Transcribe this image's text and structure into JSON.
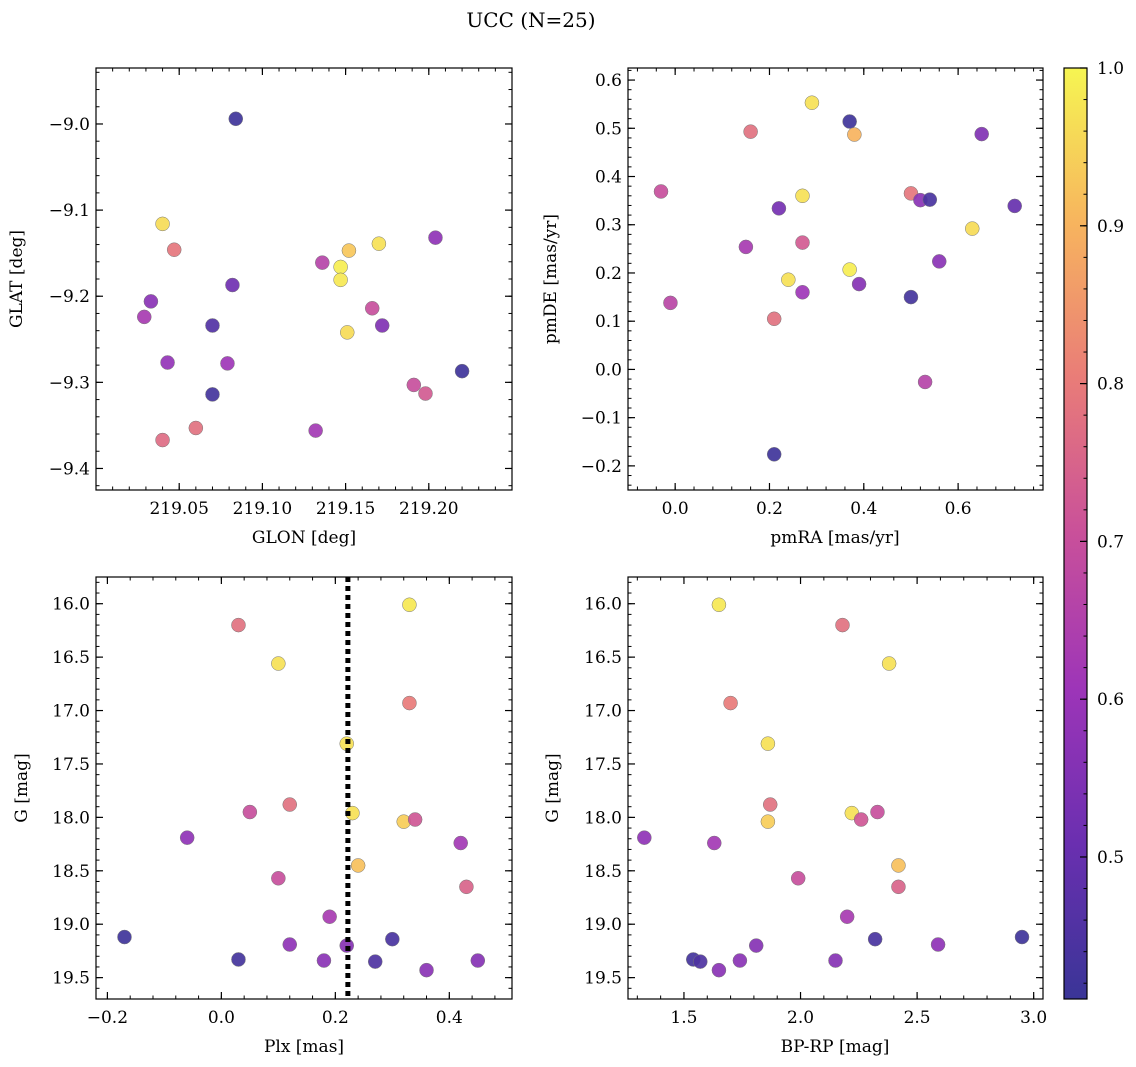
{
  "title": "UCC (N=25)",
  "colorbar": {
    "min": 0.41,
    "max": 1.0,
    "ticks": [
      0.5,
      0.6,
      0.7,
      0.8,
      0.9,
      1.0
    ],
    "tick_labels": [
      "0.5",
      "0.6",
      "0.7",
      "0.8",
      "0.9",
      "1.0"
    ],
    "colormap": "plasma",
    "stops": [
      "#3a3597",
      "#6a2fb0",
      "#9d35b8",
      "#c9509a",
      "#e97c78",
      "#f7b45e",
      "#f6f552"
    ]
  },
  "chart_data": [
    {
      "type": "scatter",
      "name": "glon-glat",
      "xlabel": "GLON [deg]",
      "ylabel": "GLAT [deg]",
      "xlim": [
        219.0,
        219.25
      ],
      "ylim": [
        -9.425,
        -8.935
      ],
      "xticks": [
        219.05,
        219.1,
        219.15,
        219.2
      ],
      "xtick_labels": [
        "219.05",
        "219.10",
        "219.15",
        "219.20"
      ],
      "yticks": [
        -9.0,
        -9.1,
        -9.2,
        -9.3,
        -9.4
      ],
      "ytick_labels": [
        "−9.0",
        "−9.1",
        "−9.2",
        "−9.3",
        "−9.4"
      ],
      "points": [
        {
          "x": 219.084,
          "y": -8.994,
          "c": 0.42
        },
        {
          "x": 219.04,
          "y": -9.116,
          "c": 0.96
        },
        {
          "x": 219.047,
          "y": -9.146,
          "c": 0.79
        },
        {
          "x": 219.033,
          "y": -9.206,
          "c": 0.57
        },
        {
          "x": 219.029,
          "y": -9.224,
          "c": 0.63
        },
        {
          "x": 219.043,
          "y": -9.277,
          "c": 0.59
        },
        {
          "x": 219.07,
          "y": -9.234,
          "c": 0.46
        },
        {
          "x": 219.082,
          "y": -9.187,
          "c": 0.52
        },
        {
          "x": 219.079,
          "y": -9.278,
          "c": 0.61
        },
        {
          "x": 219.07,
          "y": -9.314,
          "c": 0.43
        },
        {
          "x": 219.04,
          "y": -9.367,
          "c": 0.77
        },
        {
          "x": 219.06,
          "y": -9.353,
          "c": 0.78
        },
        {
          "x": 219.136,
          "y": -9.161,
          "c": 0.66
        },
        {
          "x": 219.147,
          "y": -9.166,
          "c": 0.99
        },
        {
          "x": 219.147,
          "y": -9.181,
          "c": 0.98
        },
        {
          "x": 219.152,
          "y": -9.147,
          "c": 0.93
        },
        {
          "x": 219.17,
          "y": -9.139,
          "c": 0.97
        },
        {
          "x": 219.151,
          "y": -9.242,
          "c": 0.96
        },
        {
          "x": 219.166,
          "y": -9.214,
          "c": 0.7
        },
        {
          "x": 219.172,
          "y": -9.234,
          "c": 0.55
        },
        {
          "x": 219.204,
          "y": -9.132,
          "c": 0.58
        },
        {
          "x": 219.132,
          "y": -9.356,
          "c": 0.62
        },
        {
          "x": 219.191,
          "y": -9.303,
          "c": 0.7
        },
        {
          "x": 219.198,
          "y": -9.313,
          "c": 0.73
        },
        {
          "x": 219.22,
          "y": -9.287,
          "c": 0.42
        }
      ]
    },
    {
      "type": "scatter",
      "name": "pmra-pmde",
      "xlabel": "pmRA [mas/yr]",
      "ylabel": "pmDE [mas/yr]",
      "xlim": [
        -0.1,
        0.78
      ],
      "ylim": [
        -0.25,
        0.625
      ],
      "xticks": [
        0.0,
        0.2,
        0.4,
        0.6
      ],
      "xtick_labels": [
        "0.0",
        "0.2",
        "0.4",
        "0.6"
      ],
      "yticks": [
        -0.2,
        -0.1,
        0.0,
        0.1,
        0.2,
        0.3,
        0.4,
        0.5,
        0.6
      ],
      "ytick_labels": [
        "−0.2",
        "−0.1",
        "0.0",
        "0.1",
        "0.2",
        "0.3",
        "0.4",
        "0.5",
        "0.6"
      ],
      "points": [
        {
          "x": 0.29,
          "y": 0.553,
          "c": 0.97
        },
        {
          "x": 0.37,
          "y": 0.514,
          "c": 0.42
        },
        {
          "x": 0.16,
          "y": 0.493,
          "c": 0.78
        },
        {
          "x": 0.38,
          "y": 0.487,
          "c": 0.9
        },
        {
          "x": 0.65,
          "y": 0.488,
          "c": 0.55
        },
        {
          "x": -0.03,
          "y": 0.369,
          "c": 0.7
        },
        {
          "x": 0.27,
          "y": 0.36,
          "c": 0.97
        },
        {
          "x": 0.5,
          "y": 0.365,
          "c": 0.79
        },
        {
          "x": 0.52,
          "y": 0.351,
          "c": 0.57
        },
        {
          "x": 0.54,
          "y": 0.352,
          "c": 0.44
        },
        {
          "x": 0.72,
          "y": 0.339,
          "c": 0.5
        },
        {
          "x": 0.22,
          "y": 0.334,
          "c": 0.53
        },
        {
          "x": 0.63,
          "y": 0.292,
          "c": 0.96
        },
        {
          "x": 0.15,
          "y": 0.254,
          "c": 0.63
        },
        {
          "x": 0.27,
          "y": 0.263,
          "c": 0.73
        },
        {
          "x": 0.56,
          "y": 0.224,
          "c": 0.57
        },
        {
          "x": 0.37,
          "y": 0.207,
          "c": 0.99
        },
        {
          "x": 0.24,
          "y": 0.186,
          "c": 0.97
        },
        {
          "x": 0.27,
          "y": 0.16,
          "c": 0.61
        },
        {
          "x": 0.39,
          "y": 0.177,
          "c": 0.56
        },
        {
          "x": 0.5,
          "y": 0.15,
          "c": 0.43
        },
        {
          "x": -0.01,
          "y": 0.138,
          "c": 0.67
        },
        {
          "x": 0.21,
          "y": 0.105,
          "c": 0.78
        },
        {
          "x": 0.53,
          "y": -0.026,
          "c": 0.66
        },
        {
          "x": 0.21,
          "y": -0.176,
          "c": 0.42
        }
      ]
    },
    {
      "type": "scatter",
      "name": "plx-g",
      "xlabel": "Plx [mas]",
      "ylabel": "G [mag]",
      "xlim": [
        -0.22,
        0.51
      ],
      "ylim": [
        19.7,
        15.75
      ],
      "xticks": [
        -0.2,
        0.0,
        0.2,
        0.4
      ],
      "xtick_labels": [
        "−0.2",
        "0.0",
        "0.2",
        "0.4"
      ],
      "yticks": [
        16.0,
        16.5,
        17.0,
        17.5,
        18.0,
        18.5,
        19.0,
        19.5
      ],
      "ytick_labels": [
        "16.0",
        "16.5",
        "17.0",
        "17.5",
        "18.0",
        "18.5",
        "19.0",
        "19.5"
      ],
      "vline": {
        "x": 0.222,
        "style": "dotted"
      },
      "points": [
        {
          "x": 0.33,
          "y": 16.01,
          "c": 0.98
        },
        {
          "x": 0.03,
          "y": 16.2,
          "c": 0.78
        },
        {
          "x": 0.1,
          "y": 16.56,
          "c": 0.97
        },
        {
          "x": 0.33,
          "y": 16.93,
          "c": 0.8
        },
        {
          "x": 0.22,
          "y": 17.31,
          "c": 0.97
        },
        {
          "x": 0.05,
          "y": 17.95,
          "c": 0.7
        },
        {
          "x": 0.12,
          "y": 17.88,
          "c": 0.78
        },
        {
          "x": 0.23,
          "y": 17.96,
          "c": 0.97
        },
        {
          "x": 0.32,
          "y": 18.04,
          "c": 0.94
        },
        {
          "x": 0.34,
          "y": 18.02,
          "c": 0.72
        },
        {
          "x": -0.06,
          "y": 18.19,
          "c": 0.58
        },
        {
          "x": 0.42,
          "y": 18.24,
          "c": 0.62
        },
        {
          "x": 0.24,
          "y": 18.45,
          "c": 0.92
        },
        {
          "x": 0.1,
          "y": 18.57,
          "c": 0.7
        },
        {
          "x": 0.43,
          "y": 18.65,
          "c": 0.75
        },
        {
          "x": 0.19,
          "y": 18.93,
          "c": 0.63
        },
        {
          "x": -0.17,
          "y": 19.12,
          "c": 0.42
        },
        {
          "x": 0.3,
          "y": 19.14,
          "c": 0.44
        },
        {
          "x": 0.12,
          "y": 19.19,
          "c": 0.58
        },
        {
          "x": 0.22,
          "y": 19.2,
          "c": 0.56
        },
        {
          "x": 0.03,
          "y": 19.33,
          "c": 0.43
        },
        {
          "x": 0.18,
          "y": 19.34,
          "c": 0.57
        },
        {
          "x": 0.27,
          "y": 19.35,
          "c": 0.45
        },
        {
          "x": 0.45,
          "y": 19.34,
          "c": 0.56
        },
        {
          "x": 0.36,
          "y": 19.43,
          "c": 0.57
        }
      ]
    },
    {
      "type": "scatter",
      "name": "bprp-g",
      "xlabel": "BP-RP [mag]",
      "ylabel": "G [mag]",
      "xlim": [
        1.26,
        3.04
      ],
      "ylim": [
        19.7,
        15.75
      ],
      "xticks": [
        1.5,
        2.0,
        2.5,
        3.0
      ],
      "xtick_labels": [
        "1.5",
        "2.0",
        "2.5",
        "3.0"
      ],
      "yticks": [
        16.0,
        16.5,
        17.0,
        17.5,
        18.0,
        18.5,
        19.0,
        19.5
      ],
      "ytick_labels": [
        "16.0",
        "16.5",
        "17.0",
        "17.5",
        "18.0",
        "18.5",
        "19.0",
        "19.5"
      ],
      "points": [
        {
          "x": 1.65,
          "y": 16.01,
          "c": 0.98
        },
        {
          "x": 2.18,
          "y": 16.2,
          "c": 0.78
        },
        {
          "x": 2.38,
          "y": 16.56,
          "c": 0.97
        },
        {
          "x": 1.7,
          "y": 16.93,
          "c": 0.8
        },
        {
          "x": 1.86,
          "y": 17.31,
          "c": 0.97
        },
        {
          "x": 1.87,
          "y": 17.88,
          "c": 0.78
        },
        {
          "x": 1.86,
          "y": 18.04,
          "c": 0.94
        },
        {
          "x": 2.22,
          "y": 17.96,
          "c": 0.97
        },
        {
          "x": 2.33,
          "y": 17.95,
          "c": 0.7
        },
        {
          "x": 2.26,
          "y": 18.02,
          "c": 0.72
        },
        {
          "x": 1.33,
          "y": 18.19,
          "c": 0.58
        },
        {
          "x": 1.63,
          "y": 18.24,
          "c": 0.62
        },
        {
          "x": 2.42,
          "y": 18.45,
          "c": 0.92
        },
        {
          "x": 1.99,
          "y": 18.57,
          "c": 0.7
        },
        {
          "x": 2.42,
          "y": 18.65,
          "c": 0.75
        },
        {
          "x": 2.2,
          "y": 18.93,
          "c": 0.63
        },
        {
          "x": 2.95,
          "y": 19.12,
          "c": 0.42
        },
        {
          "x": 2.32,
          "y": 19.14,
          "c": 0.44
        },
        {
          "x": 2.59,
          "y": 19.19,
          "c": 0.58
        },
        {
          "x": 1.81,
          "y": 19.2,
          "c": 0.56
        },
        {
          "x": 1.54,
          "y": 19.33,
          "c": 0.43
        },
        {
          "x": 1.57,
          "y": 19.35,
          "c": 0.45
        },
        {
          "x": 1.74,
          "y": 19.34,
          "c": 0.57
        },
        {
          "x": 2.15,
          "y": 19.34,
          "c": 0.56
        },
        {
          "x": 1.65,
          "y": 19.43,
          "c": 0.57
        }
      ]
    }
  ]
}
